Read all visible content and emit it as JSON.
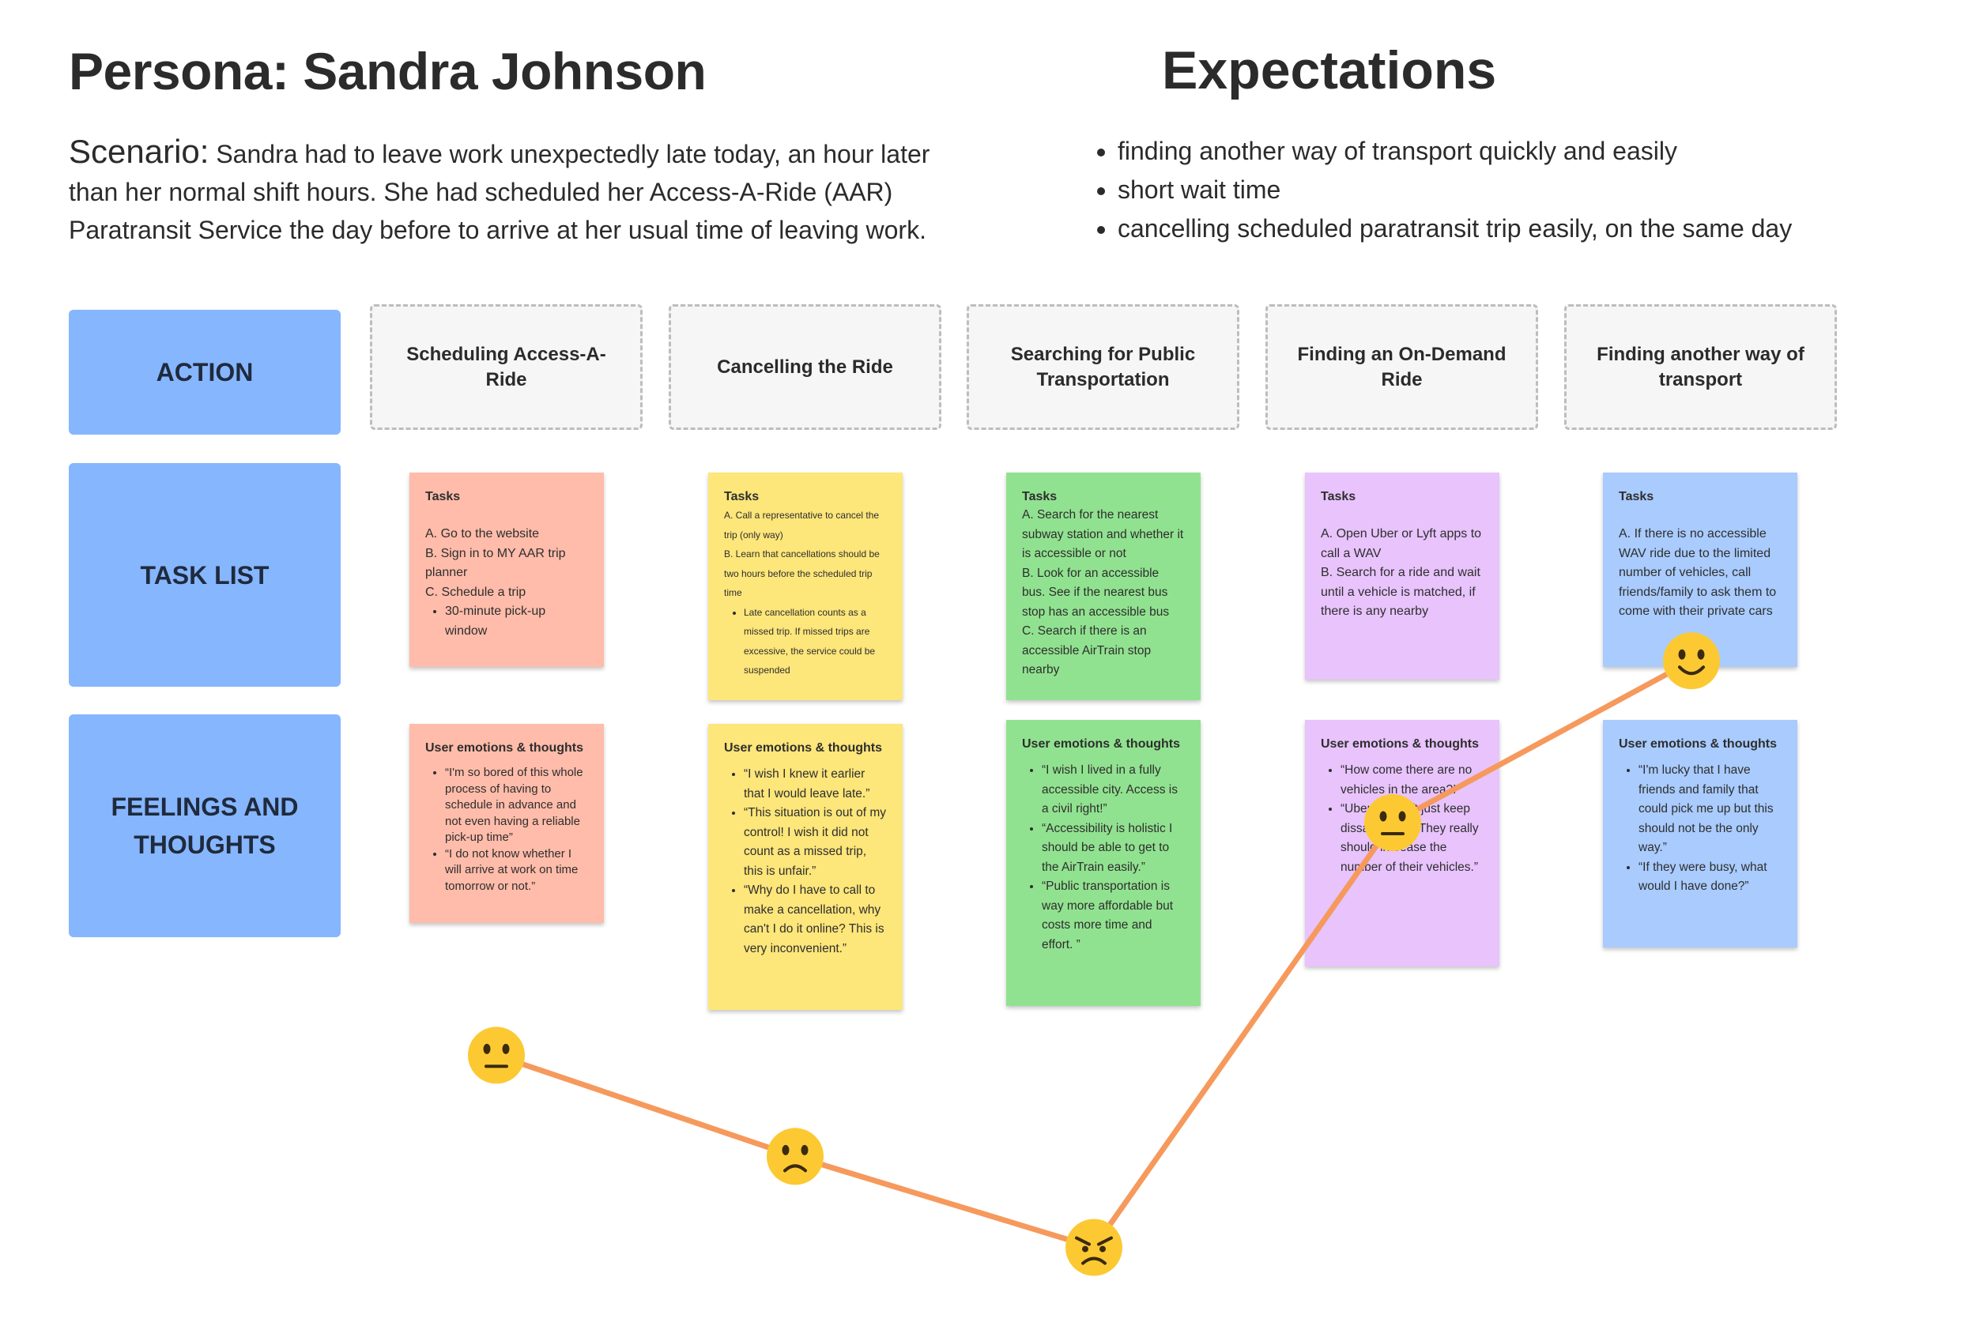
{
  "persona": {
    "title": "Persona: Sandra Johnson"
  },
  "scenario": {
    "label": "Scenario:",
    "text": " Sandra had to leave work unexpectedly late today, an hour later than her normal shift hours. She had scheduled her Access-A-Ride (AAR) Paratransit Service the day before to arrive at her usual time of leaving work."
  },
  "expectations": {
    "title": "Expectations",
    "items": [
      "finding another way of transport quickly and easily",
      "short wait time",
      "cancelling scheduled paratransit trip easily, on the same day"
    ]
  },
  "rows": {
    "action": "ACTION",
    "task_list": "TASK LIST",
    "feelings": "FEELINGS AND THOUGHTS"
  },
  "actions": [
    "Scheduling  Access-A-Ride",
    "Cancelling the Ride",
    "Searching for Public Transportation",
    "Finding an On-Demand Ride",
    "Finding another way of transport"
  ],
  "tasks": {
    "title": "Tasks",
    "stage1": {
      "items": [
        "A. Go to the website",
        "B. Sign in to MY AAR trip planner",
        "C. Schedule a trip"
      ],
      "bullets": [
        "30-minute pick-up window"
      ]
    },
    "stage2": {
      "items": [
        "A. Call a representative to cancel the trip (only way)",
        "B. Learn that cancellations should be two hours before the scheduled trip time"
      ],
      "bullets": [
        "Late cancellation counts as a missed trip. If missed trips are excessive, the service could be suspended"
      ]
    },
    "stage3": {
      "items": [
        "A. Search for the nearest subway station and whether it is accessible or not",
        "B.  Look for an accessible bus. See if the nearest bus stop has an accessible bus",
        "C. Search if there is an accessible AirTrain stop nearby"
      ]
    },
    "stage4": {
      "items": [
        "A. Open Uber or Lyft apps to call a WAV",
        "B. Search for a ride and wait until a vehicle is matched, if there is any nearby"
      ]
    },
    "stage5": {
      "items": [
        "A. If there is no accessible WAV ride due to the limited number of vehicles, call friends/family to ask them to come with their private cars"
      ]
    }
  },
  "emotions": {
    "title": "User emotions & thoughts",
    "stage1": [
      "“I'm so bored of this whole process of having to schedule in advance and not even having a reliable pick-up time”",
      "“I do not know whether I will arrive at work on time tomorrow or not.”"
    ],
    "stage2": [
      "“I wish I knew it earlier that I would leave late.”",
      "“This situation is out of my control! I wish it did not count as a missed trip, this is unfair.”",
      "“Why do I have to call to make a cancellation, why can't I do it online? This is very inconvenient.”"
    ],
    "stage3": [
      "“I wish I lived in a fully accessible city. Access is a civil right!”",
      "“Accessibility is holistic I should be able to get to the AirTrain easily.”",
      "“Public transportation is way more affordable but costs more time and effort. ”"
    ],
    "stage4": [
      "“How come there are no vehicles in the area?!”",
      "“Uber and Lyft just keep dissapointing. They really should increase the number of their vehicles.”"
    ],
    "stage5": [
      "“I'm lucky that I have friends and family that could pick me up but this should not be the only way.”",
      "“If they were busy, what would I have done?”"
    ]
  },
  "journey": {
    "moods": [
      "neutral",
      "sad",
      "angry",
      "neutral",
      "happy"
    ],
    "levels": [
      0.17,
      0.07,
      -0.02,
      0.4,
      0.56
    ],
    "icons": [
      "neutral-face-icon",
      "frowning-face-icon",
      "angry-face-icon",
      "neutral-face-icon",
      "smiling-face-icon"
    ],
    "line_color": "#f6995c",
    "emoji_color": "#fcc933"
  },
  "colors": {
    "row_label": "#86b6fd",
    "stage_notes": [
      "#ffbcaa",
      "#fde67a",
      "#91e290",
      "#e8c3fc",
      "#a9cbfd"
    ]
  }
}
